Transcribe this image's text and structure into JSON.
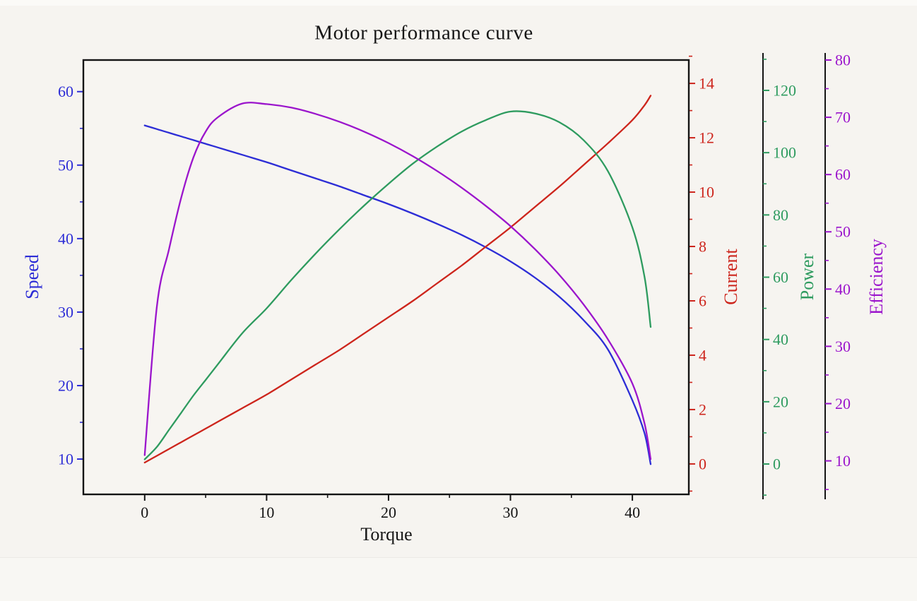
{
  "page": {
    "background": "#f6f4f0"
  },
  "chart_data": {
    "type": "line",
    "title": "Motor performance curve",
    "xlabel": "Torque",
    "grid": false,
    "legend": "none",
    "xlim": [
      -5.03,
      44.63
    ],
    "x_ticks": [
      0,
      10,
      20,
      30,
      40
    ],
    "x": [
      0,
      1,
      2,
      3,
      4,
      5,
      6,
      8,
      10,
      12,
      14,
      16,
      18,
      20,
      22,
      24,
      26,
      28,
      30,
      32,
      34,
      36,
      38,
      40,
      41,
      41.5
    ],
    "series": [
      {
        "name": "Speed",
        "color": "#2d2dd6",
        "axis_side": "left",
        "axis_offset": 0,
        "ylim": [
          5.2,
          64.3
        ],
        "ticks": [
          10,
          20,
          30,
          40,
          50,
          60
        ],
        "values": [
          55.4,
          54.9,
          54.4,
          53.9,
          53.4,
          52.9,
          52.4,
          51.4,
          50.4,
          49.3,
          48.2,
          47.1,
          45.9,
          44.7,
          43.4,
          42.0,
          40.5,
          38.8,
          36.9,
          34.7,
          32.1,
          28.9,
          24.9,
          18.0,
          13.5,
          9.3
        ]
      },
      {
        "name": "Current",
        "color": "#cd251c",
        "axis_side": "right",
        "axis_offset": 0,
        "ylim": [
          -1.12,
          14.86
        ],
        "ticks": [
          0,
          2,
          4,
          6,
          8,
          10,
          12,
          14
        ],
        "values": [
          0.05,
          0.3,
          0.55,
          0.8,
          1.05,
          1.3,
          1.55,
          2.05,
          2.55,
          3.1,
          3.65,
          4.2,
          4.8,
          5.4,
          6.0,
          6.65,
          7.3,
          8.0,
          8.7,
          9.45,
          10.2,
          11.0,
          11.8,
          12.65,
          13.2,
          13.55
        ]
      },
      {
        "name": "Power",
        "color": "#2e9b5f",
        "axis_side": "right",
        "axis_offset": 105,
        "ylim": [
          -9.75,
          129.75
        ],
        "ticks": [
          0,
          20,
          40,
          60,
          80,
          100,
          120
        ],
        "values": [
          1.5,
          5.5,
          11.0,
          16.5,
          22.0,
          27.0,
          32.0,
          42.0,
          50.0,
          59.0,
          67.5,
          75.5,
          83.0,
          90.0,
          96.5,
          102.0,
          106.8,
          110.5,
          113.2,
          112.6,
          109.8,
          104.0,
          94.0,
          76.0,
          60.0,
          44.0
        ]
      },
      {
        "name": "Efficiency",
        "color": "#9b15cc",
        "axis_side": "right",
        "axis_offset": 193,
        "ylim": [
          4.15,
          80.0
        ],
        "ticks": [
          10,
          20,
          30,
          40,
          50,
          60,
          70,
          80
        ],
        "values": [
          11.0,
          37.0,
          47.0,
          56.0,
          63.0,
          67.5,
          70.0,
          72.4,
          72.3,
          71.7,
          70.6,
          69.2,
          67.5,
          65.5,
          63.2,
          60.6,
          57.7,
          54.5,
          51.0,
          47.0,
          42.5,
          37.3,
          31.2,
          23.5,
          16.5,
          10.3
        ]
      }
    ]
  }
}
